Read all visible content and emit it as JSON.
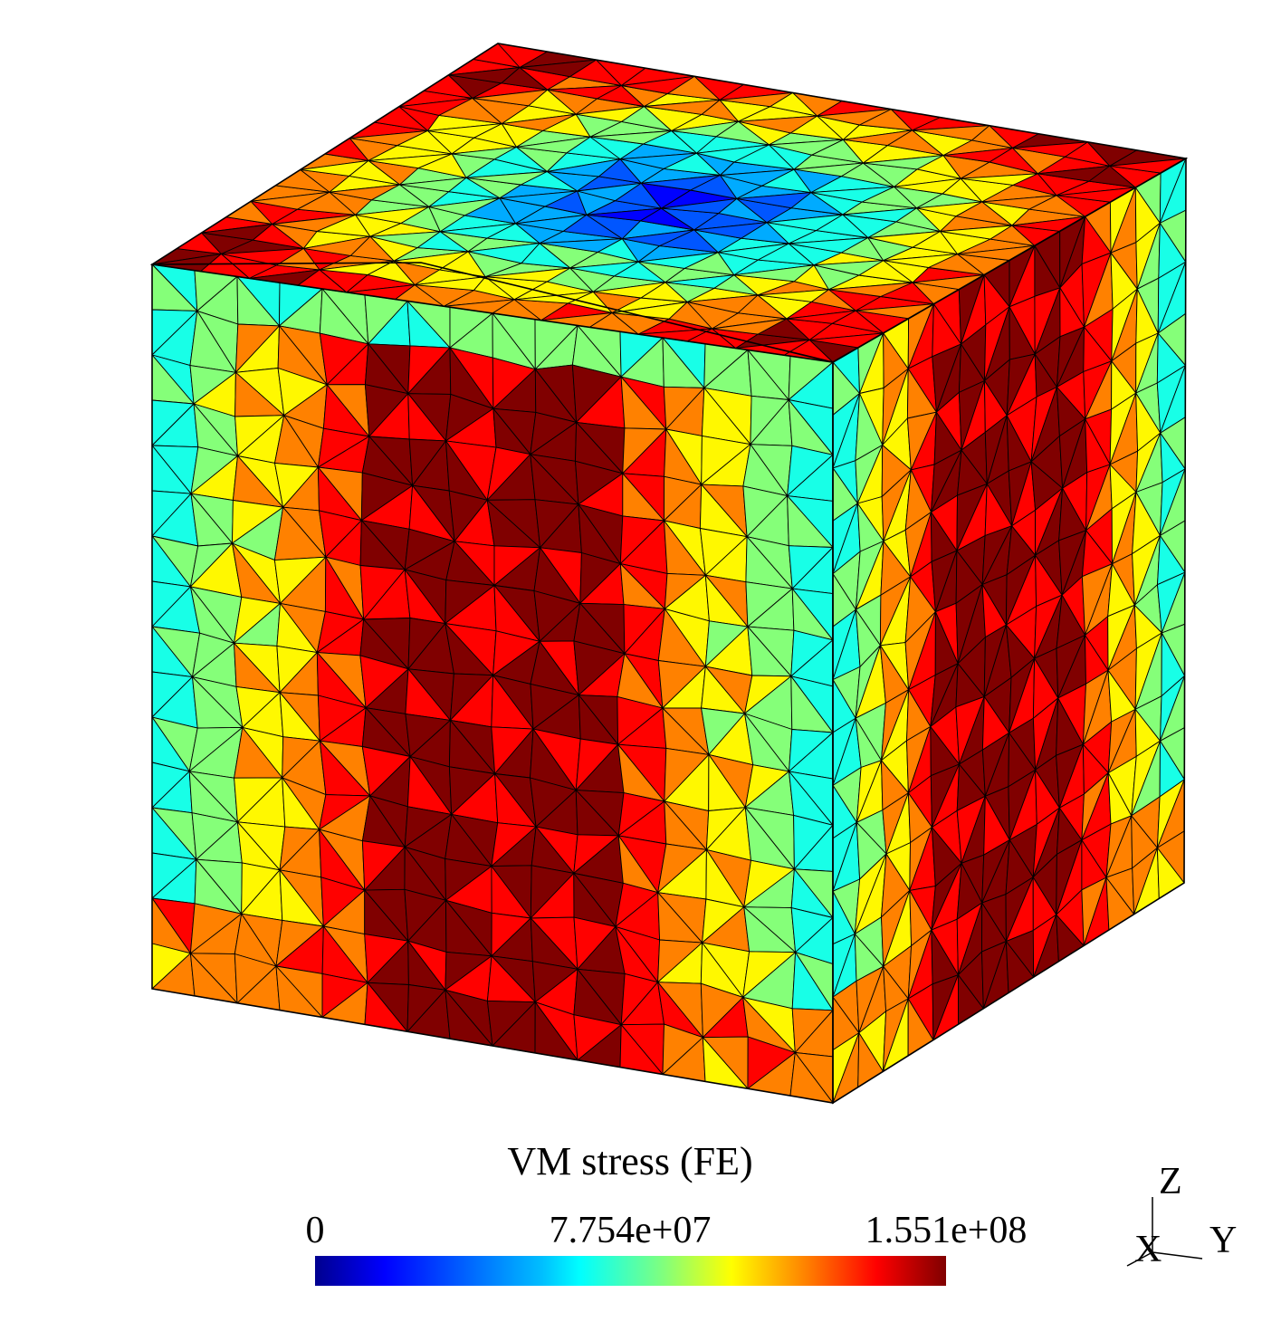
{
  "colorbar": {
    "title": "VM stress (FE)",
    "min_label": "0",
    "mid_label": "7.754e+07",
    "max_label": "1.551e+08",
    "colormap": "jet",
    "stops": [
      "#00008f",
      "#0000ff",
      "#00bfff",
      "#00ffff",
      "#7fff7f",
      "#ffff00",
      "#ff7f00",
      "#ff0000",
      "#800000"
    ]
  },
  "axes_triad": {
    "x": "X",
    "y": "Y",
    "z": "Z"
  },
  "mesh": {
    "front_face_grid": 16,
    "right_face_grid": 14,
    "top_face_grid": 14,
    "edge_color": "#000000"
  }
}
